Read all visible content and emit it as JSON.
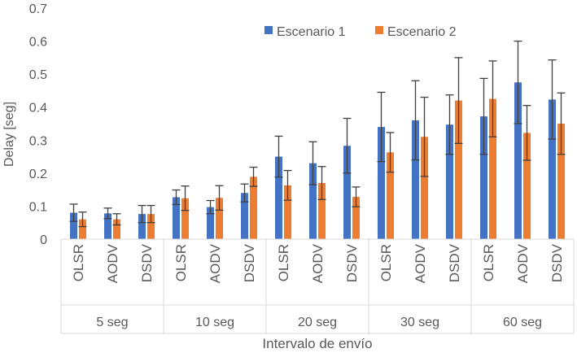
{
  "colors": {
    "series1": "#4472C4",
    "series2": "#ED7D31",
    "axis_text": "#595959",
    "error_bar": "#404040",
    "grid": "#D9D9D9"
  },
  "chart_data": {
    "type": "bar",
    "title": "",
    "xlabel": "Intervalo de envío",
    "ylabel": "Delay [seg]",
    "ylim": [
      0,
      0.7
    ],
    "yticks": [
      "0",
      "0.1",
      "0.2",
      "0.3",
      "0.4",
      "0.5",
      "0.6",
      "0.7"
    ],
    "grid": false,
    "legend": "top-right",
    "groups": [
      "5 seg",
      "10 seg",
      "20 seg",
      "30 seg",
      "60 seg"
    ],
    "protocols": [
      "OLSR",
      "AODV",
      "DSDV"
    ],
    "series": [
      {
        "name": "Escenario 1",
        "values": [
          [
            0.08,
            0.078,
            0.076
          ],
          [
            0.127,
            0.097,
            0.14
          ],
          [
            0.25,
            0.23,
            0.283
          ],
          [
            0.34,
            0.36,
            0.347
          ],
          [
            0.372,
            0.475,
            0.423
          ]
        ],
        "errors": [
          [
            0.026,
            0.016,
            0.026
          ],
          [
            0.022,
            0.02,
            0.027
          ],
          [
            0.062,
            0.065,
            0.083
          ],
          [
            0.105,
            0.12,
            0.09
          ],
          [
            0.115,
            0.125,
            0.12
          ]
        ]
      },
      {
        "name": "Escenario 2",
        "values": [
          [
            0.06,
            0.06,
            0.076
          ],
          [
            0.124,
            0.125,
            0.189
          ],
          [
            0.163,
            0.17,
            0.128
          ],
          [
            0.263,
            0.31,
            0.42
          ],
          [
            0.425,
            0.322,
            0.35
          ]
        ],
        "errors": [
          [
            0.022,
            0.017,
            0.026
          ],
          [
            0.037,
            0.037,
            0.029
          ],
          [
            0.045,
            0.05,
            0.03
          ],
          [
            0.06,
            0.12,
            0.13
          ],
          [
            0.115,
            0.083,
            0.093
          ]
        ]
      }
    ]
  }
}
